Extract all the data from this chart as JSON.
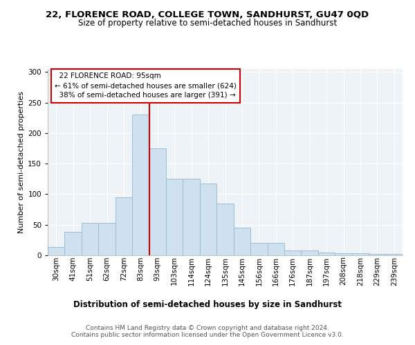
{
  "title": "22, FLORENCE ROAD, COLLEGE TOWN, SANDHURST, GU47 0QD",
  "subtitle": "Size of property relative to semi-detached houses in Sandhurst",
  "xlabel": "Distribution of semi-detached houses by size in Sandhurst",
  "ylabel": "Number of semi-detached properties",
  "categories": [
    "30sqm",
    "41sqm",
    "51sqm",
    "62sqm",
    "72sqm",
    "83sqm",
    "93sqm",
    "103sqm",
    "114sqm",
    "124sqm",
    "135sqm",
    "145sqm",
    "156sqm",
    "166sqm",
    "176sqm",
    "187sqm",
    "197sqm",
    "208sqm",
    "218sqm",
    "229sqm",
    "239sqm"
  ],
  "values": [
    14,
    38,
    53,
    53,
    95,
    230,
    175,
    125,
    125,
    118,
    85,
    45,
    20,
    20,
    8,
    8,
    5,
    3,
    3,
    2,
    2
  ],
  "bar_color": "#cfe0ef",
  "bar_edge_color": "#9bbdd4",
  "property_label": "22 FLORENCE ROAD: 95sqm",
  "pct_smaller": 61,
  "n_smaller": 624,
  "pct_larger": 38,
  "n_larger": 391,
  "vline_index": 6,
  "vline_color": "#cc0000",
  "box_color": "#cc0000",
  "annotation_fontsize": 7.5,
  "title_fontsize": 9.5,
  "subtitle_fontsize": 8.5,
  "xlabel_fontsize": 8.5,
  "ylabel_fontsize": 8,
  "tick_fontsize": 7.5,
  "footer_text": "Contains HM Land Registry data © Crown copyright and database right 2024.\nContains public sector information licensed under the Open Government Licence v3.0.",
  "footer_fontsize": 6.5,
  "bg_color": "#ffffff",
  "plot_bg_color": "#eef3f8",
  "ylim": [
    0,
    305
  ],
  "grid_color": "#ffffff"
}
